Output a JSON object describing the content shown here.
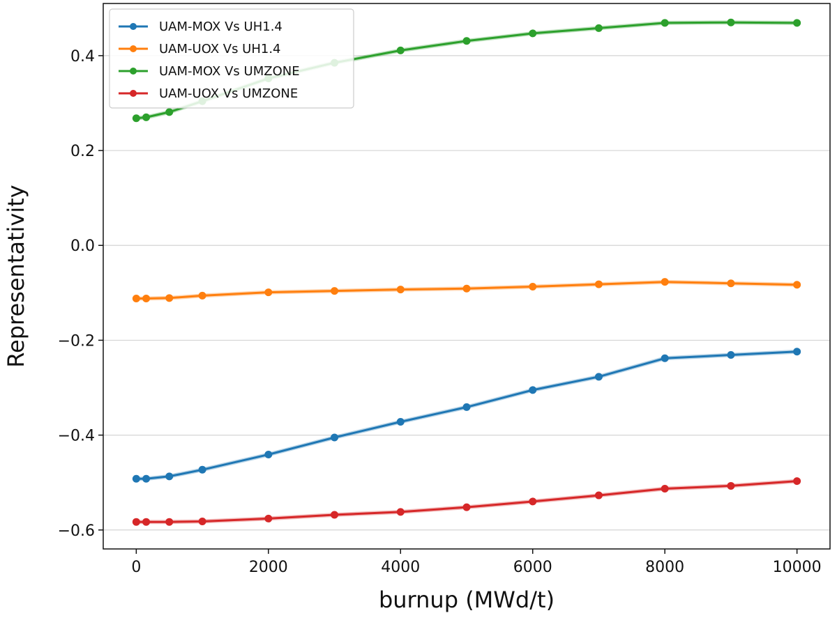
{
  "chart_data": {
    "type": "line",
    "title": "",
    "xlabel": "burnup (MWd/t)",
    "ylabel": "Representativity",
    "xlim": [
      -500,
      10500
    ],
    "ylim": [
      -0.64,
      0.51
    ],
    "x_ticks": [
      0,
      2000,
      4000,
      6000,
      8000,
      10000
    ],
    "y_ticks": [
      -0.6,
      -0.4,
      -0.2,
      0.0,
      0.2,
      0.4
    ],
    "x_tick_labels": [
      "0",
      "2000",
      "4000",
      "6000",
      "8000",
      "10000"
    ],
    "y_tick_labels": [
      "−0.6",
      "−0.4",
      "−0.2",
      "0.0",
      "0.2",
      "0.4"
    ],
    "grid": "horizontal",
    "legend_position": "top-left",
    "x": [
      0,
      150,
      500,
      1000,
      2000,
      3000,
      4000,
      5000,
      6000,
      7000,
      8000,
      9000,
      10000
    ],
    "series": [
      {
        "name": "UAM-MOX Vs UH1.4",
        "color": "#1f77b4",
        "values": [
          -0.492,
          -0.492,
          -0.487,
          -0.473,
          -0.441,
          -0.405,
          -0.372,
          -0.341,
          -0.305,
          -0.277,
          -0.238,
          -0.231,
          -0.224
        ]
      },
      {
        "name": "UAM-UOX Vs UH1.4",
        "color": "#ff7f0e",
        "values": [
          -0.112,
          -0.112,
          -0.111,
          -0.106,
          -0.099,
          -0.096,
          -0.093,
          -0.091,
          -0.087,
          -0.082,
          -0.077,
          -0.08,
          -0.083
        ]
      },
      {
        "name": "UAM-MOX Vs UMZONE",
        "color": "#2ca02c",
        "values": [
          0.268,
          0.27,
          0.281,
          0.304,
          0.352,
          0.385,
          0.411,
          0.431,
          0.447,
          0.458,
          0.469,
          0.47,
          0.469
        ]
      },
      {
        "name": "UAM-UOX Vs UMZONE",
        "color": "#d62728",
        "values": [
          -0.583,
          -0.583,
          -0.583,
          -0.582,
          -0.576,
          -0.568,
          -0.562,
          -0.552,
          -0.54,
          -0.527,
          -0.513,
          -0.507,
          -0.497
        ]
      }
    ]
  }
}
